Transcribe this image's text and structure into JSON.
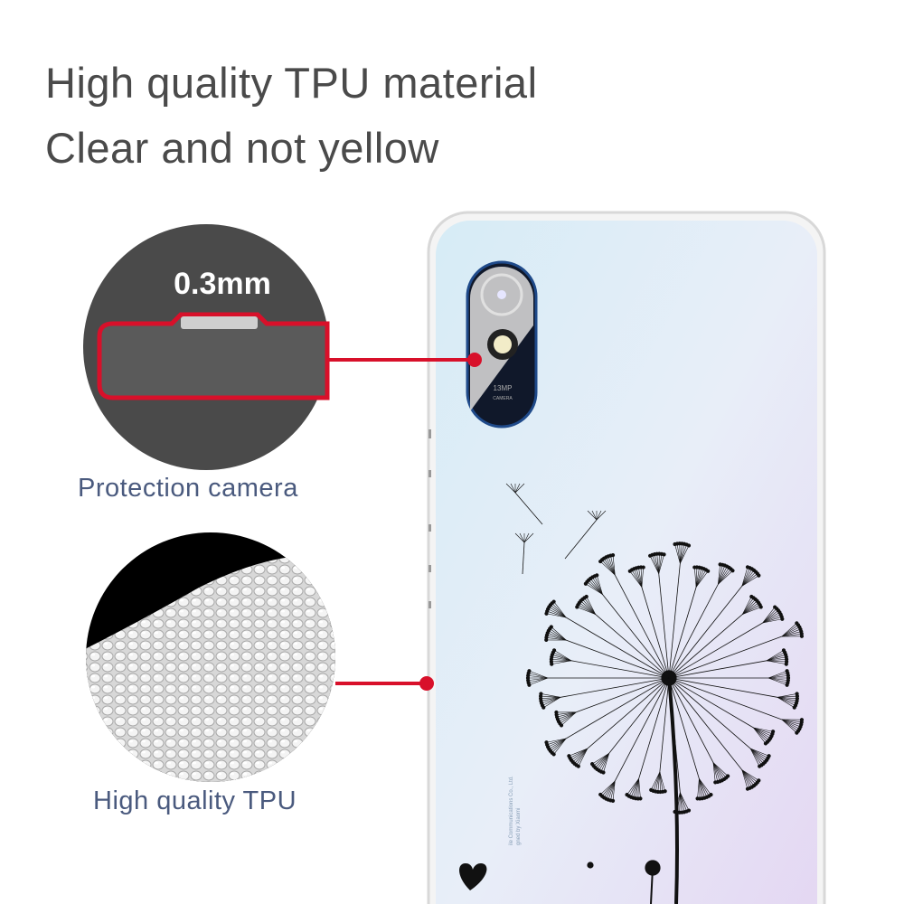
{
  "headline": {
    "line1": "High quality TPU material",
    "line2": "Clear and not yellow"
  },
  "callouts": [
    {
      "label": "0.3mm",
      "caption": "Protection camera"
    },
    {
      "caption": "High quality TPU"
    }
  ],
  "camera": {
    "line1": "13MP",
    "line2": "CAMERA"
  },
  "back_print": {
    "line1": "ile Communications Co., Ltd.",
    "line2": "gned by Xiaomi"
  },
  "colors": {
    "accent": "#d8102a",
    "text": "#4a4a4a",
    "caption": "#4a5a7e",
    "circle_bg": "#4a4a4a"
  }
}
